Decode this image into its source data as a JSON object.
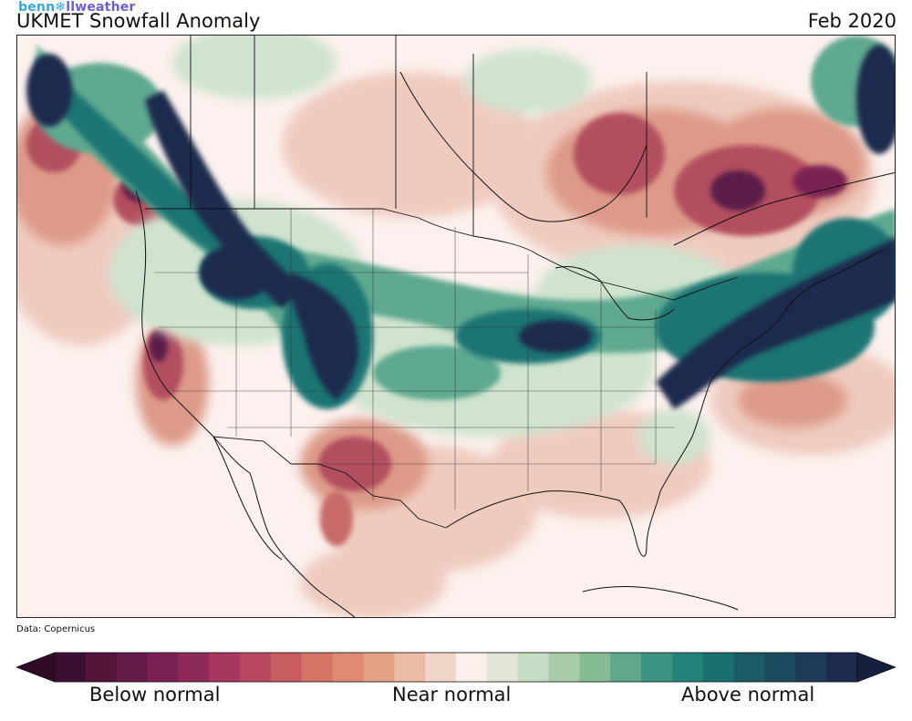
{
  "header": {
    "brand_part1": "benn",
    "brand_part2": "llweather",
    "title": "UKMET Snowfall Anomaly",
    "date": "Feb 2020"
  },
  "map": {
    "source": "Data: Copernicus"
  },
  "colorbar": {
    "colors": [
      "#3b0f2f",
      "#521439",
      "#661a47",
      "#7a2152",
      "#8e2a58",
      "#a7375e",
      "#b8485f",
      "#c85d60",
      "#d57466",
      "#df8a72",
      "#e5a184",
      "#ebbba6",
      "#f2d5c9",
      "#fbf0ec",
      "#e2e6d9",
      "#c5dbc3",
      "#a8ccaa",
      "#86bb94",
      "#5fa88a",
      "#3d9482",
      "#228479",
      "#19706f",
      "#1a5b65",
      "#1b4a5e",
      "#1d3a58",
      "#1b2a4d"
    ],
    "end_colors": {
      "left": "#2f0b27",
      "right": "#15203f"
    },
    "labels": {
      "below": "Below normal",
      "near": "Near normal",
      "above": "Above normal"
    }
  },
  "anomaly_colors": {
    "deep_negative": "#5c1a48",
    "negative": "#b2505f",
    "mild_negative": "#dd9a88",
    "slight_negative": "#efcbbf",
    "neutral": "#fcf1ee",
    "slight_positive": "#cfe3cf",
    "positive": "#5ea990",
    "strong_positive": "#1e7473",
    "deep_positive": "#1b2a4d"
  }
}
